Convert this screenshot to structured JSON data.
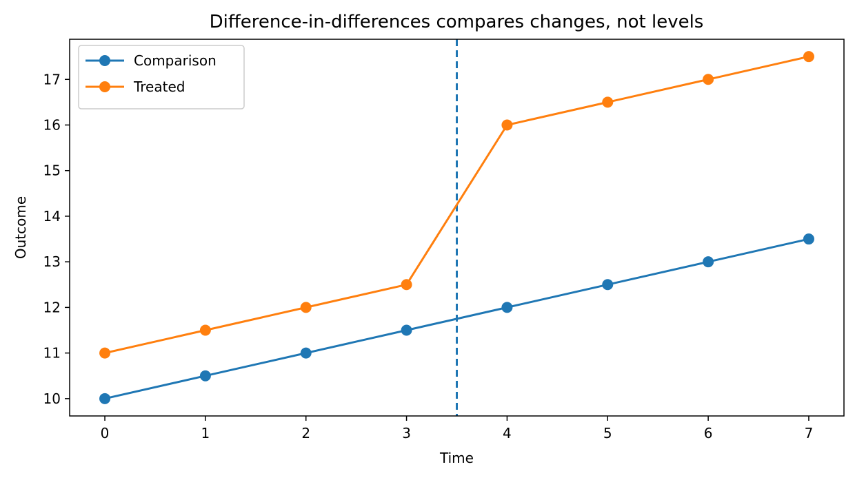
{
  "chart_data": {
    "type": "line",
    "title": "Difference-in-differences compares changes, not levels",
    "xlabel": "Time",
    "ylabel": "Outcome",
    "x": [
      0,
      1,
      2,
      3,
      4,
      5,
      6,
      7
    ],
    "xlim": [
      -0.35,
      7.35
    ],
    "ylim": [
      9.62,
      17.88
    ],
    "xticks": [
      0,
      1,
      2,
      3,
      4,
      5,
      6,
      7
    ],
    "yticks": [
      10,
      11,
      12,
      13,
      14,
      15,
      16,
      17
    ],
    "grid": false,
    "legend_position": "top-left",
    "series": [
      {
        "name": "Comparison",
        "color": "#1f77b4",
        "marker": "circle",
        "values": [
          10,
          10.5,
          11,
          11.5,
          12,
          12.5,
          13,
          13.5
        ]
      },
      {
        "name": "Treated",
        "color": "#ff7f0e",
        "marker": "circle",
        "values": [
          11,
          11.5,
          12,
          12.5,
          16,
          16.5,
          17,
          17.5
        ]
      }
    ],
    "reference_line": {
      "orientation": "vertical",
      "x": 3.5,
      "style": "dashed",
      "color": "#1f77b4"
    }
  }
}
